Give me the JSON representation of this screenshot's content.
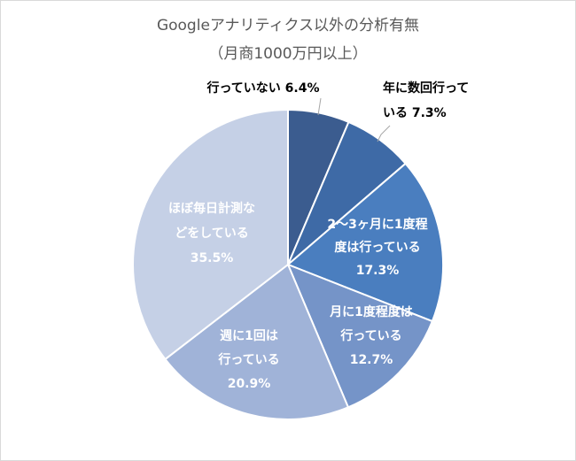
{
  "chart_data": {
    "type": "pie",
    "title": "Googleアナリティクス以外の分析有無",
    "subtitle": "（月商1000万円以上）",
    "slices": [
      {
        "label_lines": [
          "行っていない 6.4%"
        ],
        "value": 6.4,
        "color": "#3b5c8f",
        "label_color": "#000000"
      },
      {
        "label_lines": [
          "年に数回行って",
          "いる 7.3%"
        ],
        "value": 7.3,
        "color": "#3e6aa6",
        "label_color": "#000000"
      },
      {
        "label_lines": [
          "2～3ヶ月に1度程",
          "度は行っている",
          "17.3%"
        ],
        "value": 17.3,
        "color": "#4a7ebf",
        "label_color": "#ffffff"
      },
      {
        "label_lines": [
          "月に1度程度は",
          "行っている",
          "12.7%"
        ],
        "value": 12.7,
        "color": "#7594c8",
        "label_color": "#ffffff"
      },
      {
        "label_lines": [
          "週に1回は",
          "行っている",
          "20.9%"
        ],
        "value": 20.9,
        "color": "#a0b3d8",
        "label_color": "#ffffff"
      },
      {
        "label_lines": [
          "ほぼ毎日計測な",
          "どをしている",
          "35.5%"
        ],
        "value": 35.5,
        "color": "#c5d0e6",
        "label_color": "#ffffff"
      }
    ]
  }
}
